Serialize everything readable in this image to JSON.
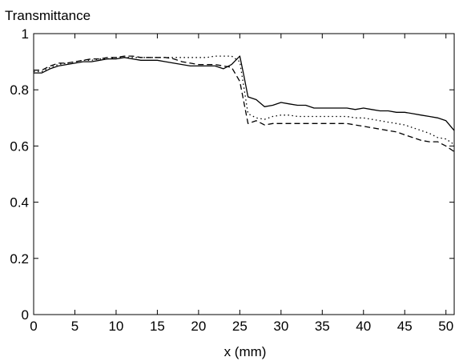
{
  "chart_data": {
    "type": "line",
    "title": "",
    "ylabel": "Transmittance",
    "xlabel": "x (mm)",
    "xlim": [
      0,
      51
    ],
    "ylim": [
      0,
      1
    ],
    "xticks": [
      0,
      5,
      10,
      15,
      20,
      25,
      30,
      35,
      40,
      45,
      50
    ],
    "yticks": [
      0,
      0.2,
      0.4,
      0.6,
      0.8,
      1
    ],
    "ytick_labels": [
      "0",
      "0.2",
      "0.4",
      "0.6",
      "0.8",
      "1"
    ],
    "grid": false,
    "legend": "none",
    "series": [
      {
        "style": "solid",
        "x": [
          0,
          1,
          2,
          3,
          4,
          5,
          6,
          7,
          8,
          9,
          10,
          11,
          12,
          13,
          14,
          15,
          16,
          17,
          18,
          19,
          20,
          21,
          22,
          23,
          24,
          25,
          25.5,
          26,
          27,
          28,
          29,
          30,
          31,
          32,
          33,
          34,
          35,
          36,
          37,
          38,
          39,
          40,
          41,
          42,
          43,
          44,
          45,
          46,
          47,
          48,
          49,
          50,
          51
        ],
        "y": [
          0.86,
          0.86,
          0.875,
          0.885,
          0.89,
          0.895,
          0.9,
          0.9,
          0.905,
          0.91,
          0.91,
          0.915,
          0.91,
          0.905,
          0.905,
          0.905,
          0.9,
          0.895,
          0.89,
          0.885,
          0.885,
          0.885,
          0.885,
          0.875,
          0.89,
          0.92,
          0.85,
          0.775,
          0.765,
          0.74,
          0.745,
          0.755,
          0.75,
          0.745,
          0.745,
          0.735,
          0.735,
          0.735,
          0.735,
          0.735,
          0.73,
          0.735,
          0.73,
          0.725,
          0.725,
          0.72,
          0.72,
          0.715,
          0.71,
          0.705,
          0.7,
          0.69,
          0.655
        ]
      },
      {
        "style": "dashed",
        "x": [
          0,
          1,
          2,
          3,
          4,
          5,
          6,
          7,
          8,
          9,
          10,
          11,
          12,
          13,
          14,
          15,
          16,
          17,
          18,
          19,
          20,
          21,
          22,
          23,
          24,
          25,
          26,
          27,
          28,
          29,
          30,
          31,
          32,
          33,
          34,
          35,
          36,
          37,
          38,
          39,
          40,
          41,
          42,
          43,
          44,
          45,
          46,
          47,
          48,
          49,
          50,
          51
        ],
        "y": [
          0.87,
          0.87,
          0.885,
          0.895,
          0.895,
          0.9,
          0.905,
          0.91,
          0.91,
          0.915,
          0.915,
          0.92,
          0.92,
          0.915,
          0.915,
          0.915,
          0.915,
          0.91,
          0.9,
          0.895,
          0.89,
          0.89,
          0.89,
          0.885,
          0.88,
          0.83,
          0.68,
          0.69,
          0.675,
          0.68,
          0.68,
          0.68,
          0.68,
          0.68,
          0.68,
          0.68,
          0.68,
          0.68,
          0.68,
          0.675,
          0.67,
          0.665,
          0.66,
          0.655,
          0.65,
          0.64,
          0.63,
          0.62,
          0.615,
          0.615,
          0.6,
          0.58
        ]
      },
      {
        "style": "dotted",
        "x": [
          0,
          1,
          2,
          3,
          4,
          5,
          6,
          7,
          8,
          9,
          10,
          11,
          12,
          13,
          14,
          15,
          16,
          17,
          18,
          19,
          20,
          21,
          22,
          23,
          24,
          25,
          26,
          27,
          28,
          29,
          30,
          31,
          32,
          33,
          34,
          35,
          36,
          37,
          38,
          39,
          40,
          41,
          42,
          43,
          44,
          45,
          46,
          47,
          48,
          49,
          50,
          51
        ],
        "y": [
          0.865,
          0.865,
          0.88,
          0.89,
          0.895,
          0.9,
          0.905,
          0.905,
          0.91,
          0.91,
          0.915,
          0.915,
          0.915,
          0.915,
          0.915,
          0.915,
          0.915,
          0.915,
          0.915,
          0.915,
          0.915,
          0.915,
          0.92,
          0.92,
          0.92,
          0.9,
          0.715,
          0.7,
          0.695,
          0.705,
          0.71,
          0.71,
          0.705,
          0.705,
          0.705,
          0.705,
          0.705,
          0.705,
          0.705,
          0.7,
          0.7,
          0.695,
          0.69,
          0.685,
          0.68,
          0.675,
          0.665,
          0.655,
          0.645,
          0.63,
          0.625,
          0.605
        ]
      }
    ]
  }
}
